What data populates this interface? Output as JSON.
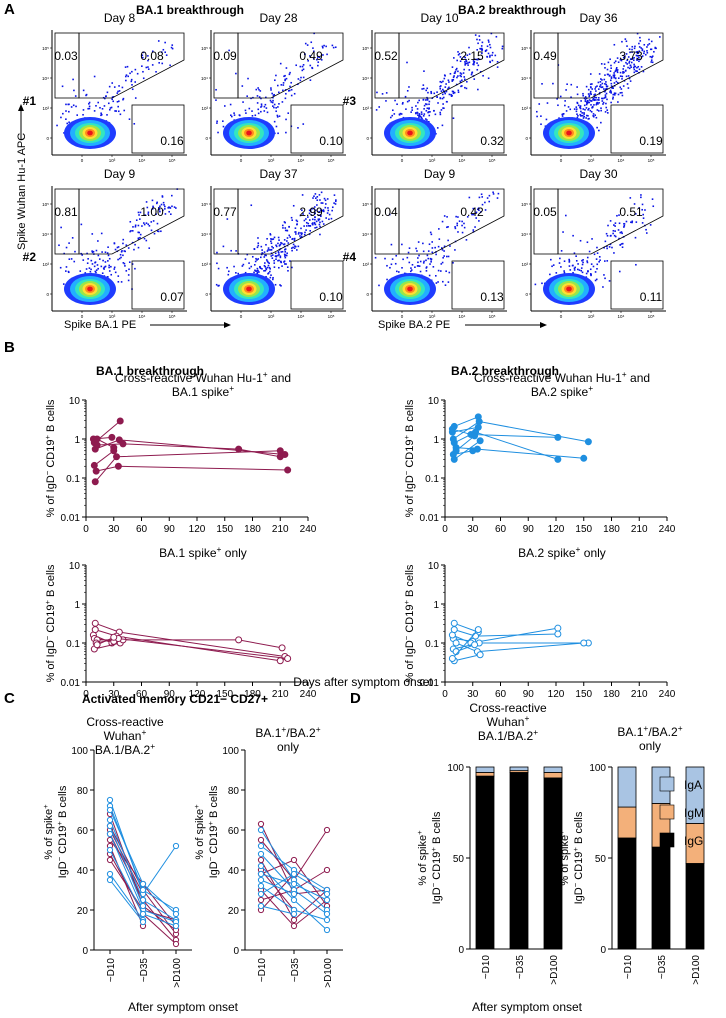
{
  "panels": {
    "A": "A",
    "B": "B",
    "C": "C",
    "D": "D"
  },
  "colors": {
    "ba1": "#8e1b4f",
    "ba2": "#1f8fe0",
    "iga": "#a9c4e3",
    "igm": "#f3b07a",
    "igg": "#000000"
  },
  "flow": {
    "ba1_title": "BA.1 breakthrough",
    "ba2_title": "BA.2 breakthrough",
    "y_label": "Spike Wuhan Hu-1 APC",
    "x_label_ba1": "Spike BA.1 PE",
    "x_label_ba2": "Spike BA.2 PE",
    "plots": [
      {
        "patient": "#1",
        "day": "Day 8",
        "tl": "0.03",
        "tr": "0.08",
        "br": "0.16",
        "pattern": 0
      },
      {
        "patient": "",
        "day": "Day 28",
        "tl": "0.09",
        "tr": "0.49",
        "br": "0.10",
        "pattern": 1
      },
      {
        "patient": "#3",
        "day": "Day 10",
        "tl": "0.52",
        "tr": "2.15",
        "br": "0.32",
        "pattern": 2
      },
      {
        "patient": "",
        "day": "Day 36",
        "tl": "0.49",
        "tr": "3.73",
        "br": "0.19",
        "pattern": 3
      },
      {
        "patient": "#2",
        "day": "Day 9",
        "tl": "0.81",
        "tr": "1.00",
        "br": "0.07",
        "pattern": 4
      },
      {
        "patient": "",
        "day": "Day 37",
        "tl": "0.77",
        "tr": "2.99",
        "br": "0.10",
        "pattern": 5
      },
      {
        "patient": "#4",
        "day": "Day 9",
        "tl": "0.04",
        "tr": "0.42",
        "br": "0.13",
        "pattern": 6
      },
      {
        "patient": "",
        "day": "Day 30",
        "tl": "0.05",
        "tr": "0.51",
        "br": "0.11",
        "pattern": 7
      }
    ]
  },
  "panelB": {
    "ba1_title": "BA.1 breakthrough",
    "ba2_title": "BA.2 breakthrough",
    "ylabel": "% of IgD− CD19+ B cells",
    "xlabel": "Days after symptom onset"
  },
  "panelC": {
    "title": "Activated memory CD21− CD27+",
    "xlabel": "After symptom onset",
    "ylabel_line1": "% of spike+",
    "ylabel_line2": "IgD− CD19+ B cells"
  },
  "panelD": {
    "xlabel": "After symptom onset",
    "ylabel_line1": "% of spike+",
    "ylabel_line2": "IgD− CD19+ B cells"
  },
  "chart_data": [
    {
      "id": "B1",
      "type": "line",
      "title": "Cross-reactive Wuhan Hu-1+ and BA.1 spike+",
      "ylabel": "% of IgD− CD19+ B cells",
      "xlabel": "Days after symptom onset",
      "xlim": [
        0,
        240
      ],
      "xticks": [
        0,
        30,
        60,
        90,
        120,
        150,
        180,
        210,
        240
      ],
      "yscale": "log",
      "ylim": [
        0.01,
        10
      ],
      "yticks": [
        0.01,
        0.1,
        1,
        10
      ],
      "ytick_labels": [
        "0.01",
        "0.1",
        "1",
        "10"
      ],
      "marker": "filled",
      "color": "#8e1b4f",
      "series": [
        {
          "x": [
            8,
            28
          ],
          "y": [
            1.0,
            1.1
          ]
        },
        {
          "x": [
            9,
            37
          ],
          "y": [
            0.8,
            2.9
          ]
        },
        {
          "x": [
            10,
            36,
            215
          ],
          "y": [
            0.55,
            0.95,
            0.4
          ]
        },
        {
          "x": [
            9,
            30
          ],
          "y": [
            0.21,
            0.5
          ]
        },
        {
          "x": [
            10,
            33,
            210
          ],
          "y": [
            0.08,
            0.35,
            0.5
          ]
        },
        {
          "x": [
            12,
            40,
            165,
            210
          ],
          "y": [
            0.7,
            0.75,
            0.55,
            0.35
          ]
        },
        {
          "x": [
            11,
            35,
            218
          ],
          "y": [
            0.15,
            0.2,
            0.16
          ]
        },
        {
          "x": [
            12,
            30
          ],
          "y": [
            1.0,
            0.6
          ]
        }
      ]
    },
    {
      "id": "B2",
      "type": "line",
      "title": "Cross-reactive Wuhan Hu-1+ and BA.2 spike+",
      "ylabel": "% of IgD− CD19+ B cells",
      "xlabel": "Days after symptom onset",
      "xlim": [
        0,
        240
      ],
      "xticks": [
        0,
        30,
        60,
        90,
        120,
        150,
        180,
        210,
        240
      ],
      "yscale": "log",
      "ylim": [
        0.01,
        10
      ],
      "yticks": [
        0.01,
        0.1,
        1,
        10
      ],
      "ytick_labels": [
        "0.01",
        "0.1",
        "1",
        "10"
      ],
      "marker": "filled",
      "color": "#1f8fe0",
      "series": [
        {
          "x": [
            10,
            36
          ],
          "y": [
            2.1,
            3.7
          ]
        },
        {
          "x": [
            9,
            30
          ],
          "y": [
            0.4,
            0.5
          ]
        },
        {
          "x": [
            8,
            28,
            122
          ],
          "y": [
            1.8,
            1.3,
            1.1
          ]
        },
        {
          "x": [
            9,
            37,
            155
          ],
          "y": [
            1.0,
            2.8,
            0.85
          ]
        },
        {
          "x": [
            10,
            33,
            122
          ],
          "y": [
            0.8,
            1.5,
            0.3
          ]
        },
        {
          "x": [
            12,
            35,
            150
          ],
          "y": [
            0.6,
            0.55,
            0.32
          ]
        },
        {
          "x": [
            10,
            38
          ],
          "y": [
            0.3,
            0.9
          ]
        },
        {
          "x": [
            12,
            32
          ],
          "y": [
            0.5,
            1.2
          ]
        },
        {
          "x": [
            8,
            36
          ],
          "y": [
            1.5,
            2.0
          ]
        }
      ]
    },
    {
      "id": "B3",
      "type": "line",
      "title": "BA.1 spike+ only",
      "ylabel": "% of IgD− CD19+ B cells",
      "xlabel": "Days after symptom onset",
      "xlim": [
        0,
        240
      ],
      "xticks": [
        0,
        30,
        60,
        90,
        120,
        150,
        180,
        210,
        240
      ],
      "yscale": "log",
      "ylim": [
        0.01,
        10
      ],
      "yticks": [
        0.01,
        0.1,
        1,
        10
      ],
      "ytick_labels": [
        "0.01",
        "0.1",
        "1",
        "10"
      ],
      "marker": "open",
      "color": "#8e1b4f",
      "series": [
        {
          "x": [
            8,
            28
          ],
          "y": [
            0.16,
            0.1
          ]
        },
        {
          "x": [
            9,
            37
          ],
          "y": [
            0.07,
            0.1
          ]
        },
        {
          "x": [
            10,
            36,
            215
          ],
          "y": [
            0.32,
            0.19,
            0.045
          ]
        },
        {
          "x": [
            9,
            30
          ],
          "y": [
            0.13,
            0.11
          ]
        },
        {
          "x": [
            10,
            33,
            210
          ],
          "y": [
            0.22,
            0.15,
            0.035
          ]
        },
        {
          "x": [
            12,
            40,
            165,
            212
          ],
          "y": [
            0.12,
            0.12,
            0.12,
            0.075
          ]
        },
        {
          "x": [
            11,
            35,
            218
          ],
          "y": [
            0.1,
            0.13,
            0.04
          ]
        },
        {
          "x": [
            12,
            30
          ],
          "y": [
            0.09,
            0.14
          ]
        }
      ]
    },
    {
      "id": "B4",
      "type": "line",
      "title": "BA.2 spike+ only",
      "ylabel": "% of IgD− CD19+ B cells",
      "xlabel": "Days after symptom onset",
      "xlim": [
        0,
        240
      ],
      "xticks": [
        0,
        30,
        60,
        90,
        120,
        150,
        180,
        210,
        240
      ],
      "yscale": "log",
      "ylim": [
        0.01,
        10
      ],
      "yticks": [
        0.01,
        0.1,
        1,
        10
      ],
      "ytick_labels": [
        "0.01",
        "0.1",
        "1",
        "10"
      ],
      "marker": "open",
      "color": "#1f8fe0",
      "series": [
        {
          "x": [
            10,
            36
          ],
          "y": [
            0.32,
            0.19
          ]
        },
        {
          "x": [
            9,
            30
          ],
          "y": [
            0.13,
            0.11
          ]
        },
        {
          "x": [
            8,
            28,
            122
          ],
          "y": [
            0.16,
            0.1,
            0.24
          ]
        },
        {
          "x": [
            9,
            37,
            155
          ],
          "y": [
            0.07,
            0.1,
            0.1
          ]
        },
        {
          "x": [
            10,
            33,
            122
          ],
          "y": [
            0.22,
            0.15,
            0.17
          ]
        },
        {
          "x": [
            12,
            35,
            150
          ],
          "y": [
            0.1,
            0.06,
            0.1
          ]
        },
        {
          "x": [
            10,
            38
          ],
          "y": [
            0.035,
            0.05
          ]
        },
        {
          "x": [
            12,
            32
          ],
          "y": [
            0.06,
            0.09
          ]
        },
        {
          "x": [
            8,
            36
          ],
          "y": [
            0.04,
            0.22
          ]
        }
      ]
    },
    {
      "id": "C1",
      "type": "line",
      "title": "Cross-reactive Wuhan+ BA.1/BA.2+",
      "ylabel": "% of spike+ IgD− CD19+ B cells",
      "xlabel": "After symptom onset",
      "categories": [
        "~D10",
        "~D35",
        ">D100"
      ],
      "ylim": [
        0,
        100
      ],
      "yticks": [
        0,
        20,
        40,
        60,
        80,
        100
      ],
      "series": [
        {
          "color": "#8e1b4f",
          "values": [
            62,
            30,
            8
          ]
        },
        {
          "color": "#8e1b4f",
          "values": [
            58,
            25,
            5
          ]
        },
        {
          "color": "#8e1b4f",
          "values": [
            55,
            33,
            12
          ]
        },
        {
          "color": "#8e1b4f",
          "values": [
            48,
            18,
            3
          ]
        },
        {
          "color": "#8e1b4f",
          "values": [
            68,
            22,
            10
          ]
        },
        {
          "color": "#8e1b4f",
          "values": [
            52,
            12,
            null
          ]
        },
        {
          "color": "#8e1b4f",
          "values": [
            45,
            20,
            15
          ]
        },
        {
          "color": "#8e1b4f",
          "values": [
            60,
            28,
            null
          ]
        },
        {
          "color": "#1f8fe0",
          "values": [
            75,
            28,
            52
          ]
        },
        {
          "color": "#1f8fe0",
          "values": [
            72,
            30,
            20
          ]
        },
        {
          "color": "#1f8fe0",
          "values": [
            70,
            33,
            18
          ]
        },
        {
          "color": "#1f8fe0",
          "values": [
            65,
            25,
            15
          ]
        },
        {
          "color": "#1f8fe0",
          "values": [
            58,
            20,
            14
          ]
        },
        {
          "color": "#1f8fe0",
          "values": [
            50,
            18,
            12
          ]
        },
        {
          "color": "#1f8fe0",
          "values": [
            38,
            15,
            null
          ]
        },
        {
          "color": "#1f8fe0",
          "values": [
            35,
            14,
            null
          ]
        },
        {
          "color": "#1f8fe0",
          "values": [
            62,
            22,
            null
          ]
        }
      ]
    },
    {
      "id": "C2",
      "type": "line",
      "title": "BA.1+/BA.2+ only",
      "ylabel": "% of spike+ IgD− CD19+ B cells",
      "xlabel": "After symptom onset",
      "categories": [
        "~D10",
        "~D35",
        ">D100"
      ],
      "ylim": [
        0,
        100
      ],
      "yticks": [
        0,
        20,
        40,
        60,
        80,
        100
      ],
      "series": [
        {
          "color": "#8e1b4f",
          "values": [
            63,
            28,
            30
          ]
        },
        {
          "color": "#8e1b4f",
          "values": [
            55,
            35,
            60
          ]
        },
        {
          "color": "#8e1b4f",
          "values": [
            45,
            15,
            30
          ]
        },
        {
          "color": "#8e1b4f",
          "values": [
            40,
            20,
            null
          ]
        },
        {
          "color": "#8e1b4f",
          "values": [
            38,
            45,
            22
          ]
        },
        {
          "color": "#8e1b4f",
          "values": [
            30,
            12,
            25
          ]
        },
        {
          "color": "#8e1b4f",
          "values": [
            25,
            30,
            40
          ]
        },
        {
          "color": "#8e1b4f",
          "values": [
            20,
            38,
            null
          ]
        },
        {
          "color": "#1f8fe0",
          "values": [
            60,
            35,
            20
          ]
        },
        {
          "color": "#1f8fe0",
          "values": [
            52,
            40,
            30
          ]
        },
        {
          "color": "#1f8fe0",
          "values": [
            48,
            30,
            18
          ]
        },
        {
          "color": "#1f8fe0",
          "values": [
            42,
            25,
            10
          ]
        },
        {
          "color": "#1f8fe0",
          "values": [
            38,
            33,
            25
          ]
        },
        {
          "color": "#1f8fe0",
          "values": [
            35,
            28,
            null
          ]
        },
        {
          "color": "#1f8fe0",
          "values": [
            32,
            20,
            15
          ]
        },
        {
          "color": "#1f8fe0",
          "values": [
            28,
            38,
            28
          ]
        },
        {
          "color": "#1f8fe0",
          "values": [
            22,
            18,
            null
          ]
        }
      ]
    },
    {
      "id": "D1",
      "type": "bar",
      "stacked": true,
      "title": "Cross-reactive Wuhan+ BA.1/BA.2+",
      "ylabel": "% of spike+ IgD− CD19+ B cells",
      "xlabel": "After symptom onset",
      "categories": [
        "~D10",
        "~D35",
        ">D100"
      ],
      "ylim": [
        0,
        100
      ],
      "yticks": [
        0,
        50,
        100
      ],
      "series": [
        {
          "name": "IgG",
          "color": "#000000",
          "values": [
            95,
            97,
            94
          ]
        },
        {
          "name": "IgM",
          "color": "#f3b07a",
          "values": [
            2,
            1,
            3
          ]
        },
        {
          "name": "IgA",
          "color": "#a9c4e3",
          "values": [
            3,
            2,
            3
          ]
        }
      ]
    },
    {
      "id": "D2",
      "type": "bar",
      "stacked": true,
      "title": "BA.1+/BA.2+ only",
      "ylabel": "% of spike+ IgD− CD19+ B cells",
      "xlabel": "After symptom onset",
      "categories": [
        "~D10",
        "~D35",
        ">D100"
      ],
      "ylim": [
        0,
        100
      ],
      "yticks": [
        0,
        50,
        100
      ],
      "legend": [
        "IgA",
        "IgM",
        "IgG"
      ],
      "series": [
        {
          "name": "IgG",
          "color": "#000000",
          "values": [
            61,
            56,
            47
          ]
        },
        {
          "name": "IgM",
          "color": "#f3b07a",
          "values": [
            17,
            24,
            22
          ]
        },
        {
          "name": "IgA",
          "color": "#a9c4e3",
          "values": [
            22,
            20,
            31
          ]
        }
      ]
    }
  ]
}
